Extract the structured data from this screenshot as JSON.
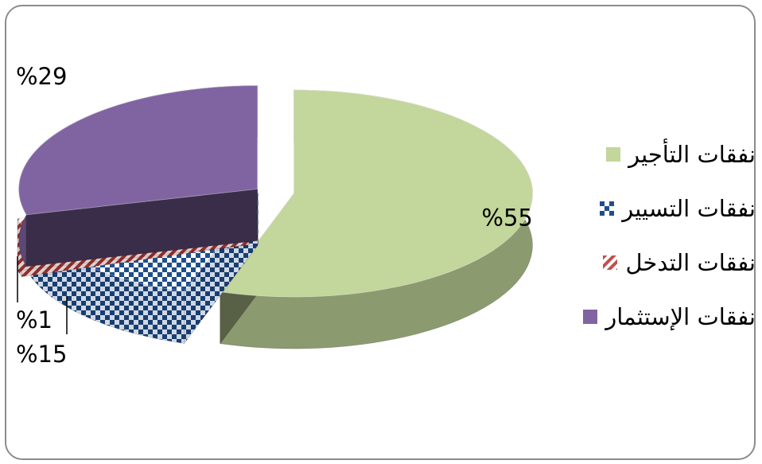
{
  "chart_data": {
    "type": "pie",
    "style": "3d-exploded",
    "slices": [
      {
        "label": "نفقات التأجير",
        "value": 55,
        "display": "%55",
        "color": "#c3d69b",
        "pattern": "solid"
      },
      {
        "label": "نفقات التسيير",
        "value": 15,
        "display": "%15",
        "color": "#1f4e8c",
        "pattern": "checker"
      },
      {
        "label": "نفقات التدخل",
        "value": 1,
        "display": "%1",
        "color": "#c0504d",
        "pattern": "diagonal-stripes"
      },
      {
        "label": "نفقات الإستثمار",
        "value": 29,
        "display": "%29",
        "color": "#8064a2",
        "pattern": "solid"
      }
    ],
    "legend_position": "right"
  }
}
